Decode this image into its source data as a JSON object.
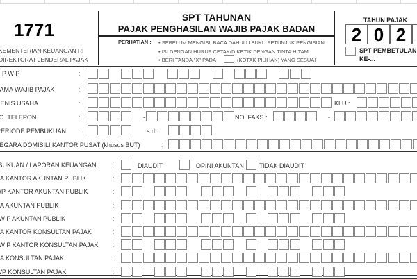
{
  "header": {
    "form_number": "1771",
    "ministry": "KEMENTERIAN KEUANGAN  RI",
    "directorate": "DIREKTORAT JENDERAL PAJAK",
    "title": "SPT TAHUNAN",
    "subtitle": "PAJAK PENGHASILAN WAJIB PAJAK BADAN",
    "perhatian_label": "PERHATIAN :",
    "notes": [
      "• SEBELUM MENGISI, BACA DAHULU BUKU PETUNJUK PENGISIAN",
      "• ISI DENGAN HURUF CETAK/DIKETIK DENGAN TINTA HITAM",
      "• BERI TANDA \"X\" PADA"
    ],
    "note_suffix": "(KOTAK PILIHAN) YANG SESUAI",
    "tahun_pajak_label": "TAHUN PAJAK",
    "tahun_digits": [
      "2",
      "0",
      "2",
      ""
    ],
    "pembetulan_label": "SPT PEMBETULAN",
    "pembetulan_ke": "KE-..."
  },
  "section1": {
    "npwp": "N P W P",
    "nama": "NAMA WAJIB PAJAK",
    "jenis": "JENIS USAHA",
    "klu": "KLU :",
    "telepon": "NO. TELEPON",
    "dash": "-",
    "faks": "NO. FAKS :",
    "periode": "PERIODE PEMBUKUAN",
    "sd": "s.d.",
    "negara": "NEGARA DOMISILI KANTOR PUSAT (khusus BUT)",
    "colon": ":"
  },
  "section2": {
    "labels": [
      "PEMBUKUAN / LAPORAN KEUANGAN",
      "NAMA KANTOR AKUNTAN PUBLIK",
      "NPWP KANTOR AKUNTAN PUBLIK",
      "NAMA AKUNTAN PUBLIK",
      "N P W P   AKUNTAN PUBLIK",
      "NAMA KANTOR KONSULTAN PAJAK",
      "N P W P   KANTOR KONSULTAN PAJAK",
      "NAMA KONSULTAN PAJAK",
      "NPWP KONSULTAN PAJAK"
    ],
    "options": [
      "DIAUDIT",
      "OPINI AKUNTAN",
      "TIDAK DIAUDIT"
    ]
  }
}
